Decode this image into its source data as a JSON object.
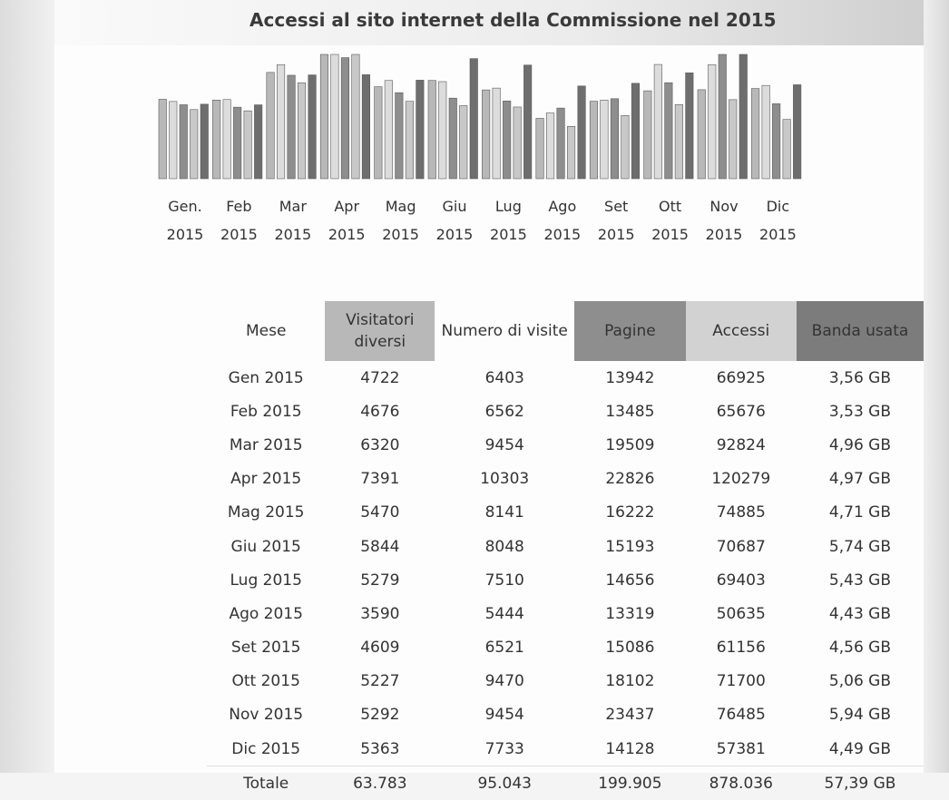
{
  "title": "Accessi al sito internet della Commissione nel 2015",
  "months": [
    {
      "top": "Gen.",
      "bottom": "2015"
    },
    {
      "top": "Feb",
      "bottom": "2015"
    },
    {
      "top": "Mar",
      "bottom": "2015"
    },
    {
      "top": "Apr",
      "bottom": "2015"
    },
    {
      "top": "Mag",
      "bottom": "2015"
    },
    {
      "top": "Giu",
      "bottom": "2015"
    },
    {
      "top": "Lug",
      "bottom": "2015"
    },
    {
      "top": "Ago",
      "bottom": "2015"
    },
    {
      "top": "Set",
      "bottom": "2015"
    },
    {
      "top": "Ott",
      "bottom": "2015"
    },
    {
      "top": "Nov",
      "bottom": "2015"
    },
    {
      "top": "Dic",
      "bottom": "2015"
    }
  ],
  "table": {
    "headers": [
      "Mese",
      "Visitatori diversi",
      "Numero di visite",
      "Pagine",
      "Accessi",
      "Banda usata"
    ],
    "rows": [
      [
        "Gen 2015",
        "4722",
        "6403",
        "13942",
        "66925",
        "3,56 GB"
      ],
      [
        "Feb 2015",
        "4676",
        "6562",
        "13485",
        "65676",
        "3,53 GB"
      ],
      [
        "Mar 2015",
        "6320",
        "9454",
        "19509",
        "92824",
        "4,96 GB"
      ],
      [
        "Apr 2015",
        "7391",
        "10303",
        "22826",
        "120279",
        "4,97 GB"
      ],
      [
        "Mag 2015",
        "5470",
        "8141",
        "16222",
        "74885",
        "4,71 GB"
      ],
      [
        "Giu 2015",
        "5844",
        "8048",
        "15193",
        "70687",
        "5,74 GB"
      ],
      [
        "Lug 2015",
        "5279",
        "7510",
        "14656",
        "69403",
        "5,43 GB"
      ],
      [
        "Ago 2015",
        "3590",
        "5444",
        "13319",
        "50635",
        "4,43 GB"
      ],
      [
        "Set 2015",
        "4609",
        "6521",
        "15086",
        "61156",
        "4,56 GB"
      ],
      [
        "Ott 2015",
        "5227",
        "9470",
        "18102",
        "71700",
        "5,06 GB"
      ],
      [
        "Nov 2015",
        "5292",
        "9454",
        "23437",
        "76485",
        "5,94 GB"
      ],
      [
        "Dic 2015",
        "5363",
        "7733",
        "14128",
        "57381",
        "4,49 GB"
      ]
    ],
    "total": [
      "Totale",
      "63.783",
      "95.043",
      "199.905",
      "878.036",
      "57,39 GB"
    ]
  },
  "chart_data": {
    "type": "bar",
    "categories": [
      "Gen. 2015",
      "Feb 2015",
      "Mar 2015",
      "Apr 2015",
      "Mag 2015",
      "Giu 2015",
      "Lug 2015",
      "Ago 2015",
      "Set 2015",
      "Ott 2015",
      "Nov 2015",
      "Dic 2015"
    ],
    "series": [
      {
        "name": "Visitatori diversi",
        "color": "#b8b8b8",
        "values": [
          4722,
          4676,
          6320,
          7391,
          5470,
          5844,
          5279,
          3590,
          4609,
          5227,
          5292,
          5363
        ]
      },
      {
        "name": "Numero di visite",
        "color": "#dcdcdc",
        "values": [
          6403,
          6562,
          9454,
          10303,
          8141,
          8048,
          7510,
          5444,
          6521,
          9470,
          9454,
          7733
        ]
      },
      {
        "name": "Pagine",
        "color": "#8e8e8e",
        "values": [
          13942,
          13485,
          19509,
          22826,
          16222,
          15193,
          14656,
          13319,
          15086,
          18102,
          23437,
          14128
        ]
      },
      {
        "name": "Accessi",
        "color": "#c8c8c8",
        "values": [
          66925,
          65676,
          92824,
          120279,
          74885,
          70687,
          69403,
          50635,
          61156,
          71700,
          76485,
          57381
        ]
      },
      {
        "name": "Banda usata",
        "color": "#6e6e6e",
        "values": [
          3.56,
          3.53,
          4.96,
          4.97,
          4.71,
          5.74,
          5.43,
          4.43,
          4.56,
          5.06,
          5.94,
          4.49
        ]
      }
    ]
  }
}
